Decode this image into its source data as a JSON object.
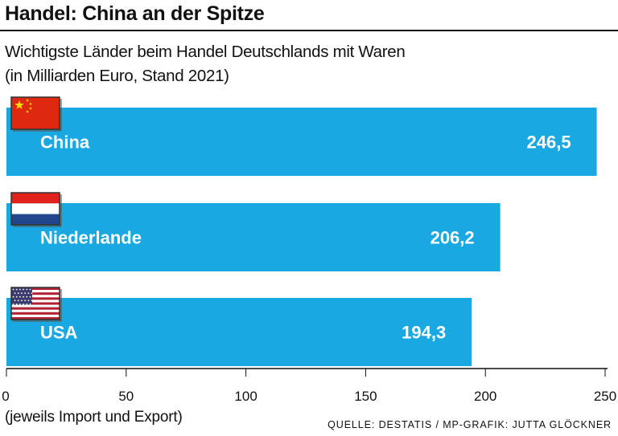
{
  "title": "Handel: China an der Spitze",
  "subtitle_line1": "Wichtigste Länder beim Handel Deutschlands mit Waren",
  "subtitle_line2": "(in Milliarden Euro, Stand 2021)",
  "footnote": "(jeweils Import und Export)",
  "source": "QUELLE: DESTATIS / MP-GRAFIK: JUTTA GLÖCKNER",
  "colors": {
    "bar": "#19a8e1",
    "bar_text": "#ffffff",
    "axis": "#111111"
  },
  "chart_data": {
    "type": "bar",
    "orientation": "horizontal",
    "categories": [
      "China",
      "Niederlande",
      "USA"
    ],
    "value_labels": [
      "246,5",
      "206,2",
      "194,3"
    ],
    "values": [
      246.5,
      206.2,
      194.3
    ],
    "flags": [
      "china-flag-icon",
      "netherlands-flag-icon",
      "usa-flag-icon"
    ],
    "xlim": [
      0,
      250
    ],
    "xticks": [
      0,
      50,
      100,
      150,
      200,
      250
    ],
    "grid": false
  }
}
